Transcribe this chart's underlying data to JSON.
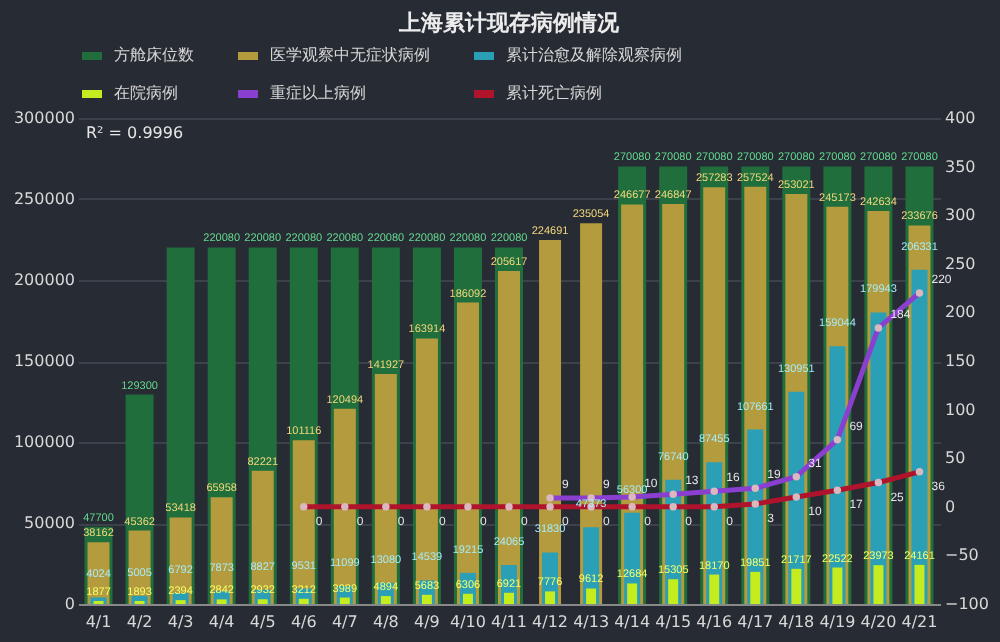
{
  "chart_data": {
    "type": "bar",
    "title": "上海累计现存病例情况",
    "categories": [
      "4/1",
      "4/2",
      "4/3",
      "4/4",
      "4/5",
      "4/6",
      "4/7",
      "4/8",
      "4/9",
      "4/10",
      "4/11",
      "4/12",
      "4/13",
      "4/14",
      "4/15",
      "4/16",
      "4/17",
      "4/18",
      "4/19",
      "4/20",
      "4/21"
    ],
    "series": [
      {
        "name": "方舱床位数",
        "color": "#1f6e3c",
        "values": [
          47700,
          129300,
          220080,
          220080,
          220080,
          220080,
          220080,
          220080,
          220080,
          220080,
          220080,
          null,
          null,
          270080,
          270080,
          270080,
          270080,
          270080,
          270080,
          270080,
          270080
        ],
        "value_labels": [
          "47700",
          "129300",
          null,
          "220080",
          "220080",
          "220080",
          "220080",
          "220080",
          "220080",
          "220080",
          "220080",
          null,
          null,
          "270080",
          "270080",
          "270080",
          "270080",
          "270080",
          "270080",
          "270080",
          "270080"
        ]
      },
      {
        "name": "医学观察中无症状病例",
        "color": "#b39b3e",
        "values": [
          38162,
          45362,
          53418,
          65958,
          82221,
          101116,
          120494,
          141927,
          163914,
          186092,
          205617,
          224691,
          235054,
          246677,
          246847,
          257283,
          257524,
          253021,
          245173,
          242634,
          233676
        ],
        "value_labels": [
          "38162",
          "45362",
          "53418",
          "65958",
          "82221",
          "101116",
          "120494",
          "141927",
          "163914",
          "186092",
          "205617",
          "224691",
          "235054",
          "246677",
          "246847",
          "257283",
          "257524",
          "253021",
          "245173",
          "242634",
          "233676"
        ]
      },
      {
        "name": "累计治愈及解除观察病例",
        "color": "#2a9fb5",
        "values": [
          4024,
          5005,
          6792,
          7873,
          8827,
          9531,
          11099,
          13080,
          14539,
          19215,
          24065,
          31830,
          47373,
          56300,
          76740,
          87455,
          107661,
          130951,
          159044,
          179943,
          206331
        ],
        "value_labels": [
          "4024",
          "5005",
          "6792",
          "7873",
          "8827",
          "9531",
          "11099",
          "13080",
          "14539",
          "19215",
          "24065",
          "31830",
          "47373",
          "56300",
          "76740",
          "87455",
          "107661",
          "130951",
          "159044",
          "179943",
          "206331"
        ]
      },
      {
        "name": "在院病例",
        "color": "#c4ec1e",
        "values": [
          1877,
          1893,
          2394,
          2842,
          2932,
          3212,
          3989,
          4894,
          5683,
          6306,
          6921,
          7776,
          9612,
          12684,
          15305,
          18170,
          19851,
          21717,
          22522,
          23973,
          24161
        ],
        "value_labels": [
          "1877",
          "1893",
          "2394",
          "2842",
          "2932",
          "3212",
          "3989",
          "4894",
          "5683",
          "6306",
          "6921",
          "7776",
          "9612",
          "12684",
          "15305",
          "18170",
          "19851",
          "21717",
          "22522",
          "23973",
          "24161"
        ]
      },
      {
        "name": "重症以上病例",
        "type": "line",
        "axis": "y2",
        "color": "#8a3fd0",
        "values": [
          null,
          null,
          null,
          null,
          null,
          null,
          null,
          null,
          null,
          null,
          null,
          9,
          9,
          10,
          13,
          16,
          19,
          31,
          69,
          184,
          220
        ],
        "value_labels": [
          null,
          null,
          null,
          null,
          null,
          null,
          null,
          null,
          null,
          null,
          null,
          "9",
          "9",
          "10",
          "13",
          "16",
          "19",
          "31",
          "69",
          "184",
          "220"
        ]
      },
      {
        "name": "累计死亡病例",
        "type": "line",
        "axis": "y2",
        "color": "#b0142c",
        "values": [
          null,
          null,
          null,
          null,
          null,
          0,
          0,
          0,
          0,
          0,
          0,
          0,
          0,
          0,
          0,
          0,
          3,
          10,
          17,
          25,
          36
        ],
        "value_labels": [
          null,
          null,
          null,
          null,
          null,
          "0",
          "0",
          "0",
          "0",
          "0",
          "0",
          "0",
          "0",
          "0",
          "0",
          "0",
          "3",
          "10",
          "17",
          "25",
          "36"
        ]
      }
    ],
    "ylim": [
      0,
      300000
    ],
    "yticks": [
      0,
      50000,
      100000,
      150000,
      200000,
      250000,
      300000
    ],
    "y2lim": [
      -100,
      400
    ],
    "y2ticks": [
      -100,
      -50,
      0,
      50,
      100,
      150,
      200,
      250,
      300,
      350,
      400
    ],
    "annotations": [
      "R² = 0.9996"
    ],
    "grid": "y",
    "legend": "top",
    "marker": "circle"
  }
}
